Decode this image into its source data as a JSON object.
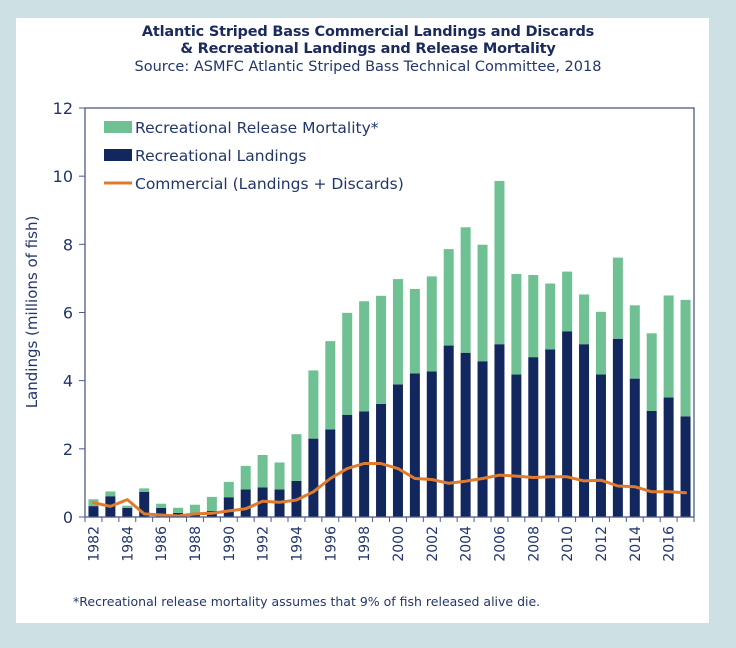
{
  "colors": {
    "background": "#cde0e3",
    "release_mortality": "#6fc193",
    "recreational_landings": "#13275f",
    "commercial": "#e07b2e",
    "axis": "#4a5a8a",
    "text": "#23366c"
  },
  "chart_data": {
    "type": "bar",
    "stacked": true,
    "title": "Atlantic Striped Bass Commercial Landings and Discards",
    "title_line2": "& Recreational Landings and Release Mortality",
    "subtitle": "Source: ASMFC Atlantic Striped Bass Technical Committee, 2018",
    "xlabel": "",
    "ylabel": "Landings (millions of fish)",
    "ylim": [
      0,
      12
    ],
    "yticks": [
      "0",
      "2",
      "4",
      "6",
      "8",
      "10",
      "12"
    ],
    "ytick_values": [
      0,
      2,
      4,
      6,
      8,
      10,
      12
    ],
    "legend_position": "top-left",
    "grid": false,
    "categories": [
      1982,
      1983,
      1984,
      1985,
      1986,
      1987,
      1988,
      1989,
      1990,
      1991,
      1992,
      1993,
      1994,
      1995,
      1996,
      1997,
      1998,
      1999,
      2000,
      2001,
      2002,
      2003,
      2004,
      2005,
      2006,
      2007,
      2008,
      2009,
      2010,
      2011,
      2012,
      2013,
      2014,
      2015,
      2016,
      2017
    ],
    "xtick_labels": [
      "1982",
      "1984",
      "1986",
      "1988",
      "1990",
      "1992",
      "1994",
      "1996",
      "1998",
      "2000",
      "2002",
      "2004",
      "2006",
      "2008",
      "2010",
      "2012",
      "2014",
      "2016"
    ],
    "series": [
      {
        "name": "Recreational Landings",
        "kind": "bar",
        "values": [
          0.32,
          0.61,
          0.27,
          0.74,
          0.27,
          0.12,
          0.1,
          0.18,
          0.58,
          0.81,
          0.87,
          0.81,
          1.06,
          2.3,
          2.57,
          3.0,
          3.1,
          3.32,
          3.89,
          4.21,
          4.27,
          5.03,
          4.82,
          4.57,
          5.07,
          4.18,
          4.69,
          4.92,
          5.45,
          5.07,
          4.18,
          5.23,
          4.06,
          3.11,
          3.51,
          2.95
        ]
      },
      {
        "name": "Recreational Release Mortality*",
        "kind": "bar",
        "values": [
          0.2,
          0.14,
          0.06,
          0.1,
          0.12,
          0.15,
          0.26,
          0.41,
          0.45,
          0.69,
          0.95,
          0.79,
          1.37,
          2.0,
          2.59,
          2.99,
          3.23,
          3.17,
          3.09,
          2.48,
          2.79,
          2.83,
          3.68,
          3.42,
          4.79,
          2.95,
          2.41,
          1.93,
          1.75,
          1.46,
          1.84,
          2.38,
          2.15,
          2.28,
          2.99,
          3.42
        ]
      },
      {
        "name": "Commercial (Landings + Discards)",
        "kind": "line",
        "values": [
          0.42,
          0.31,
          0.51,
          0.09,
          0.06,
          0.03,
          0.09,
          0.11,
          0.18,
          0.24,
          0.46,
          0.43,
          0.5,
          0.74,
          1.13,
          1.42,
          1.57,
          1.57,
          1.42,
          1.13,
          1.1,
          0.99,
          1.05,
          1.13,
          1.23,
          1.2,
          1.16,
          1.18,
          1.18,
          1.06,
          1.08,
          0.91,
          0.89,
          0.74,
          0.74,
          0.71
        ]
      }
    ],
    "legend": [
      "Recreational Release Mortality*",
      "Recreational Landings",
      "Commercial (Landings + Discards)"
    ],
    "footnote": "*Recreational release mortality assumes that 9% of fish released alive die."
  }
}
